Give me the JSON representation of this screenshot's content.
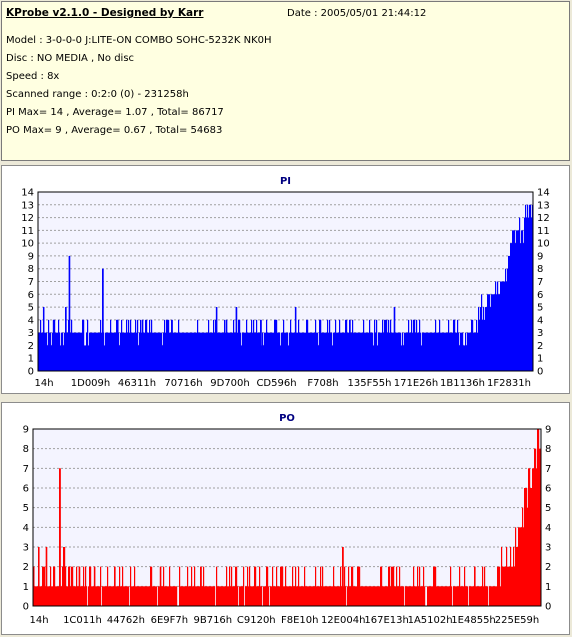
{
  "header": {
    "title": "KProbe v2.1.0 - Designed by Karr",
    "date": "Date : 2005/05/01 21:44:12",
    "lines": [
      "Model : 3-0-0-0 J:LITE-ON COMBO SOHC-5232K NK0H",
      "Disc : NO MEDIA , No disc",
      "Speed : 8x",
      "Scanned range : 0:2:0 (0) - 231258h",
      "PI Max= 14 , Average= 1.07 , Total= 86717",
      "PO Max= 9 , Average= 0.67 , Total= 54683"
    ]
  },
  "colors": {
    "pi": "#0000ff",
    "po": "#ff0000",
    "grid": "#a0a0a0",
    "title": "#000080"
  },
  "chart_data": [
    {
      "type": "bar",
      "title": "PI",
      "ylim": [
        0,
        14
      ],
      "y_ticks": [
        0,
        1,
        2,
        3,
        4,
        5,
        6,
        7,
        8,
        9,
        10,
        11,
        12,
        13,
        14
      ],
      "x_tick_labels": [
        "14h",
        "1D009h",
        "46311h",
        "70716h",
        "9D700h",
        "CD596h",
        "F708h",
        "135F55h",
        "171E26h",
        "1B1136h",
        "1F2831h"
      ],
      "grid": true,
      "baseline_level": 3,
      "spikes": [
        {
          "position": 0.01,
          "value": 5
        },
        {
          "position": 0.03,
          "value": 4
        },
        {
          "position": 0.055,
          "value": 5
        },
        {
          "position": 0.062,
          "value": 9
        },
        {
          "position": 0.09,
          "value": 4
        },
        {
          "position": 0.13,
          "value": 8
        },
        {
          "position": 0.16,
          "value": 4
        },
        {
          "position": 0.21,
          "value": 4
        },
        {
          "position": 0.27,
          "value": 4
        },
        {
          "position": 0.36,
          "value": 5
        },
        {
          "position": 0.38,
          "value": 4
        },
        {
          "position": 0.4,
          "value": 5
        },
        {
          "position": 0.45,
          "value": 4
        },
        {
          "position": 0.52,
          "value": 5
        },
        {
          "position": 0.57,
          "value": 4
        },
        {
          "position": 0.63,
          "value": 4
        },
        {
          "position": 0.72,
          "value": 5
        },
        {
          "position": 0.76,
          "value": 4
        },
        {
          "position": 0.84,
          "value": 4
        }
      ],
      "tail": [
        {
          "position": 0.88,
          "value": 4
        },
        {
          "position": 0.9,
          "value": 6
        },
        {
          "position": 0.92,
          "value": 7
        },
        {
          "position": 0.94,
          "value": 8
        },
        {
          "position": 0.96,
          "value": 11
        },
        {
          "position": 0.98,
          "value": 12
        },
        {
          "position": 1.0,
          "value": 14
        }
      ]
    },
    {
      "type": "bar",
      "title": "PO",
      "ylim": [
        0,
        9
      ],
      "y_ticks": [
        0,
        1,
        2,
        3,
        4,
        5,
        6,
        7,
        8,
        9
      ],
      "x_tick_labels": [
        "14h",
        "1C011h",
        "44762h",
        "6E9F7h",
        "9B716h",
        "C9120h",
        "F8E10h",
        "12E004h",
        "167E13h",
        "1A5102h",
        "1E4855h",
        "225E59h"
      ],
      "grid": true,
      "baseline_level": 1,
      "spikes": [
        {
          "position": 0.0,
          "value": 2
        },
        {
          "position": 0.01,
          "value": 3
        },
        {
          "position": 0.025,
          "value": 3
        },
        {
          "position": 0.04,
          "value": 2
        },
        {
          "position": 0.052,
          "value": 7
        },
        {
          "position": 0.06,
          "value": 3
        },
        {
          "position": 0.07,
          "value": 2
        },
        {
          "position": 0.09,
          "value": 2
        },
        {
          "position": 0.12,
          "value": 2
        },
        {
          "position": 0.16,
          "value": 2
        },
        {
          "position": 0.25,
          "value": 2
        },
        {
          "position": 0.33,
          "value": 2
        },
        {
          "position": 0.46,
          "value": 2
        },
        {
          "position": 0.49,
          "value": 2
        },
        {
          "position": 0.61,
          "value": 3
        },
        {
          "position": 0.87,
          "value": 2
        },
        {
          "position": 0.93,
          "value": 2
        }
      ],
      "tail": [
        {
          "position": 0.9,
          "value": 2
        },
        {
          "position": 0.94,
          "value": 3
        },
        {
          "position": 0.95,
          "value": 4
        },
        {
          "position": 0.96,
          "value": 5
        },
        {
          "position": 0.97,
          "value": 6
        },
        {
          "position": 0.98,
          "value": 8
        },
        {
          "position": 1.0,
          "value": 9
        }
      ]
    }
  ]
}
